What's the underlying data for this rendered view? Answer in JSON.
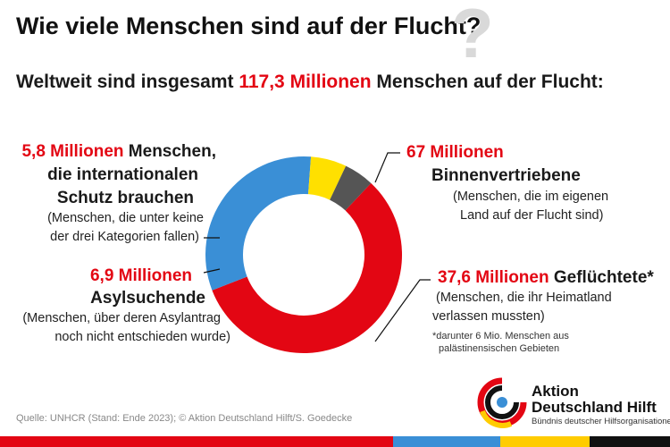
{
  "title": "Wie viele Menschen sind auf der Flucht?",
  "subtitle": {
    "pre": "Weltweit sind insgesamt ",
    "highlight": "117,3 Millionen",
    "post": " Menschen auf der Flucht:"
  },
  "labels": {
    "binnen": {
      "value": "67 Millionen",
      "name": "Binnenvertriebene",
      "desc1": "(Menschen, die im eigenen",
      "desc2": "Land auf der Flucht sind)"
    },
    "gefluechtete": {
      "value": "37,6 Millionen",
      "name": "Geflüchtete*",
      "desc1": "(Menschen, die ihr Heimatland",
      "desc2": "verlassen mussten)",
      "note1": "*darunter 6 Mio. Menschen aus",
      "note2": "palästinensischen Gebieten"
    },
    "asyl": {
      "value": "6,9 Millionen",
      "name": "Asylsuchende",
      "desc1": "(Menschen, über deren Asylantrag",
      "desc2": "noch nicht entschieden wurde)"
    },
    "schutz": {
      "value": "5,8 Millionen",
      "name1": "Menschen,",
      "name2": "die internationalen",
      "name3": "Schutz brauchen",
      "desc1": "(Menschen, die unter keine",
      "desc2": "der drei Kategorien fallen)"
    }
  },
  "source": "Quelle: UNHCR (Stand: Ende 2023); © Aktion Deutschland Hilft/S. Goedecke",
  "logo": {
    "line1": "Aktion",
    "line2": "Deutschland Hilft",
    "line3": "Bündnis deutscher Hilfsorganisationen"
  },
  "colors": {
    "red": "#e30613",
    "blue": "#3a8fd6",
    "yellow": "#ffe000",
    "gray": "#555555"
  },
  "chart_data": {
    "type": "pie",
    "donut": true,
    "total": 117.3,
    "unit": "Millionen",
    "series": [
      {
        "name": "Binnenvertriebene",
        "value": 67.0,
        "color": "#e30613"
      },
      {
        "name": "Geflüchtete",
        "value": 37.6,
        "color": "#3a8fd6"
      },
      {
        "name": "Asylsuchende",
        "value": 6.9,
        "color": "#ffe000"
      },
      {
        "name": "Menschen, die internationalen Schutz brauchen",
        "value": 5.8,
        "color": "#555555"
      }
    ]
  }
}
